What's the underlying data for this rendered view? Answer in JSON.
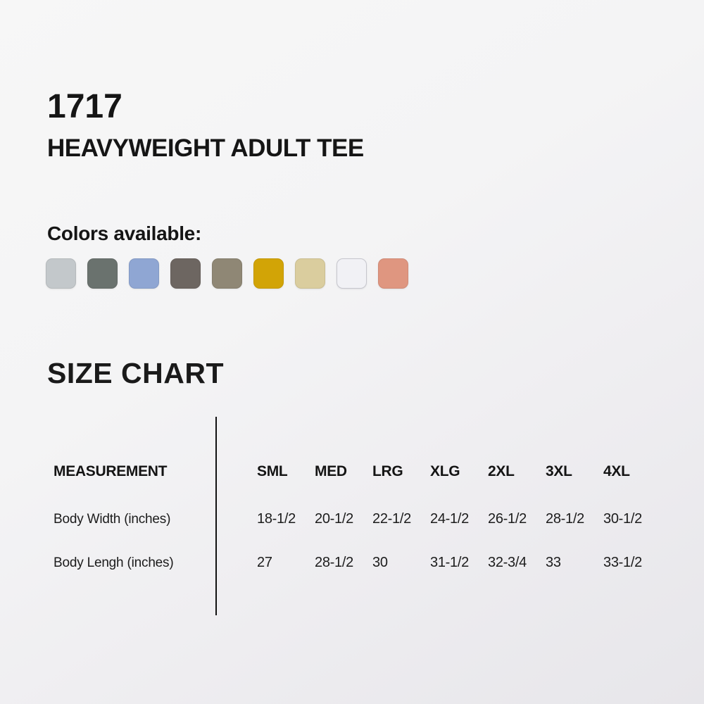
{
  "product": {
    "style_number": "1717",
    "name": "HEAVYWEIGHT ADULT TEE"
  },
  "colors_section": {
    "label": "Colors available:",
    "swatches": [
      {
        "name": "silver-gray",
        "hex": "#c3c8cb"
      },
      {
        "name": "charcoal-green",
        "hex": "#6a726e"
      },
      {
        "name": "periwinkle-blue",
        "hex": "#8fa6d3"
      },
      {
        "name": "dark-taupe",
        "hex": "#6d6661"
      },
      {
        "name": "khaki-gray",
        "hex": "#8f8775"
      },
      {
        "name": "mustard-gold",
        "hex": "#d2a406"
      },
      {
        "name": "sand-tan",
        "hex": "#dacd9e"
      },
      {
        "name": "white",
        "hex": "#f1f1f5"
      },
      {
        "name": "salmon",
        "hex": "#df9680"
      }
    ]
  },
  "size_chart": {
    "title": "SIZE CHART",
    "measurement_header": "MEASUREMENT",
    "size_headers": [
      "SML",
      "MED",
      "LRG",
      "XLG",
      "2XL",
      "3XL",
      "4XL"
    ],
    "rows": [
      {
        "label": "Body Width (inches)",
        "values": [
          "18-1/2",
          "20-1/2",
          "22-1/2",
          "24-1/2",
          "26-1/2",
          "28-1/2",
          "30-1/2"
        ]
      },
      {
        "label": "Body Lengh (inches)",
        "values": [
          "27",
          "28-1/2",
          "30",
          "31-1/2",
          "32-3/4",
          "33",
          "33-1/2"
        ]
      }
    ]
  }
}
